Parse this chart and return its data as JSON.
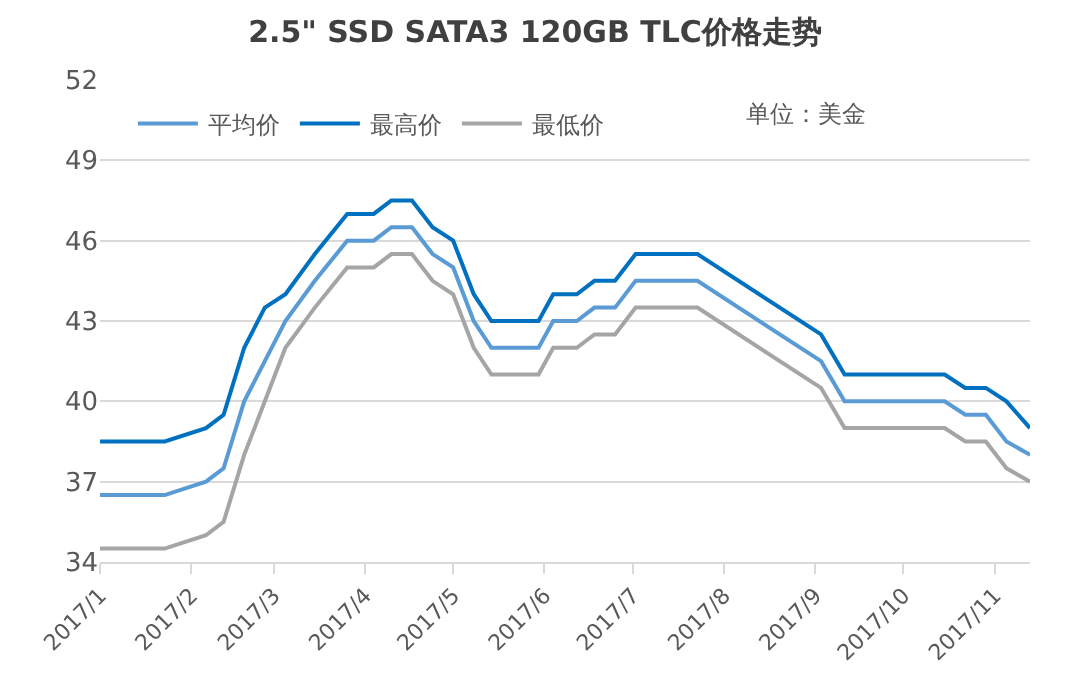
{
  "chart_data": {
    "type": "line",
    "title": "2.5\" SSD SATA3 120GB TLC价格走势",
    "x": [
      "2017-01-01",
      "2017-01-23",
      "2017-02-06",
      "2017-02-12",
      "2017-02-19",
      "2017-02-26",
      "2017-03-05",
      "2017-03-15",
      "2017-03-26",
      "2017-04-04",
      "2017-04-10",
      "2017-04-17",
      "2017-04-24",
      "2017-05-01",
      "2017-05-08",
      "2017-05-14",
      "2017-05-30",
      "2017-06-04",
      "2017-06-12",
      "2017-06-18",
      "2017-06-25",
      "2017-07-02",
      "2017-07-23",
      "2017-09-03",
      "2017-09-11",
      "2017-10-15",
      "2017-10-22",
      "2017-10-29",
      "2017-11-05",
      "2017-11-13"
    ],
    "series": [
      {
        "name": "平均价",
        "color": "#5b9bd5",
        "values": [
          36.5,
          36.5,
          37,
          37.5,
          40,
          41.5,
          43,
          44.5,
          46,
          46,
          46.5,
          46.5,
          45.5,
          45,
          43,
          42,
          42,
          43,
          43,
          43.5,
          43.5,
          44.5,
          44.5,
          41.5,
          40,
          40,
          39.5,
          39.5,
          38.5,
          38
        ]
      },
      {
        "name": "最高价",
        "color": "#0070c0",
        "values": [
          38.5,
          38.5,
          39,
          39.5,
          42,
          43.5,
          44,
          45.5,
          47,
          47,
          47.5,
          47.5,
          46.5,
          46,
          44,
          43,
          43,
          44,
          44,
          44.5,
          44.5,
          45.5,
          45.5,
          42.5,
          41,
          41,
          40.5,
          40.5,
          40,
          39
        ]
      },
      {
        "name": "最低价",
        "color": "#a5a5a5",
        "values": [
          34.5,
          34.5,
          35,
          35.5,
          38,
          40,
          42,
          43.5,
          45,
          45,
          45.5,
          45.5,
          44.5,
          44,
          42,
          41,
          41,
          42,
          42,
          42.5,
          42.5,
          43.5,
          43.5,
          40.5,
          39,
          39,
          38.5,
          38.5,
          37.5,
          37
        ]
      }
    ],
    "annotations": [
      "单位：美金"
    ],
    "xlim": [
      "2017-01-01",
      "2017-11-13"
    ],
    "xticks": [
      {
        "value": "2017-01-01",
        "label": "2017/1"
      },
      {
        "value": "2017-02-01",
        "label": "2017/2"
      },
      {
        "value": "2017-03-01",
        "label": "2017/3"
      },
      {
        "value": "2017-04-01",
        "label": "2017/4"
      },
      {
        "value": "2017-05-01",
        "label": "2017/5"
      },
      {
        "value": "2017-06-01",
        "label": "2017/6"
      },
      {
        "value": "2017-07-01",
        "label": "2017/7"
      },
      {
        "value": "2017-08-01",
        "label": "2017/8"
      },
      {
        "value": "2017-09-01",
        "label": "2017/9"
      },
      {
        "value": "2017-10-01",
        "label": "2017/10"
      },
      {
        "value": "2017-11-01",
        "label": "2017/11"
      }
    ],
    "ylim": [
      34,
      52
    ],
    "yticks": [
      34,
      37,
      40,
      43,
      46,
      49,
      52
    ],
    "grid": "y",
    "legend": "top",
    "marker": "none",
    "line_style": "solid"
  }
}
